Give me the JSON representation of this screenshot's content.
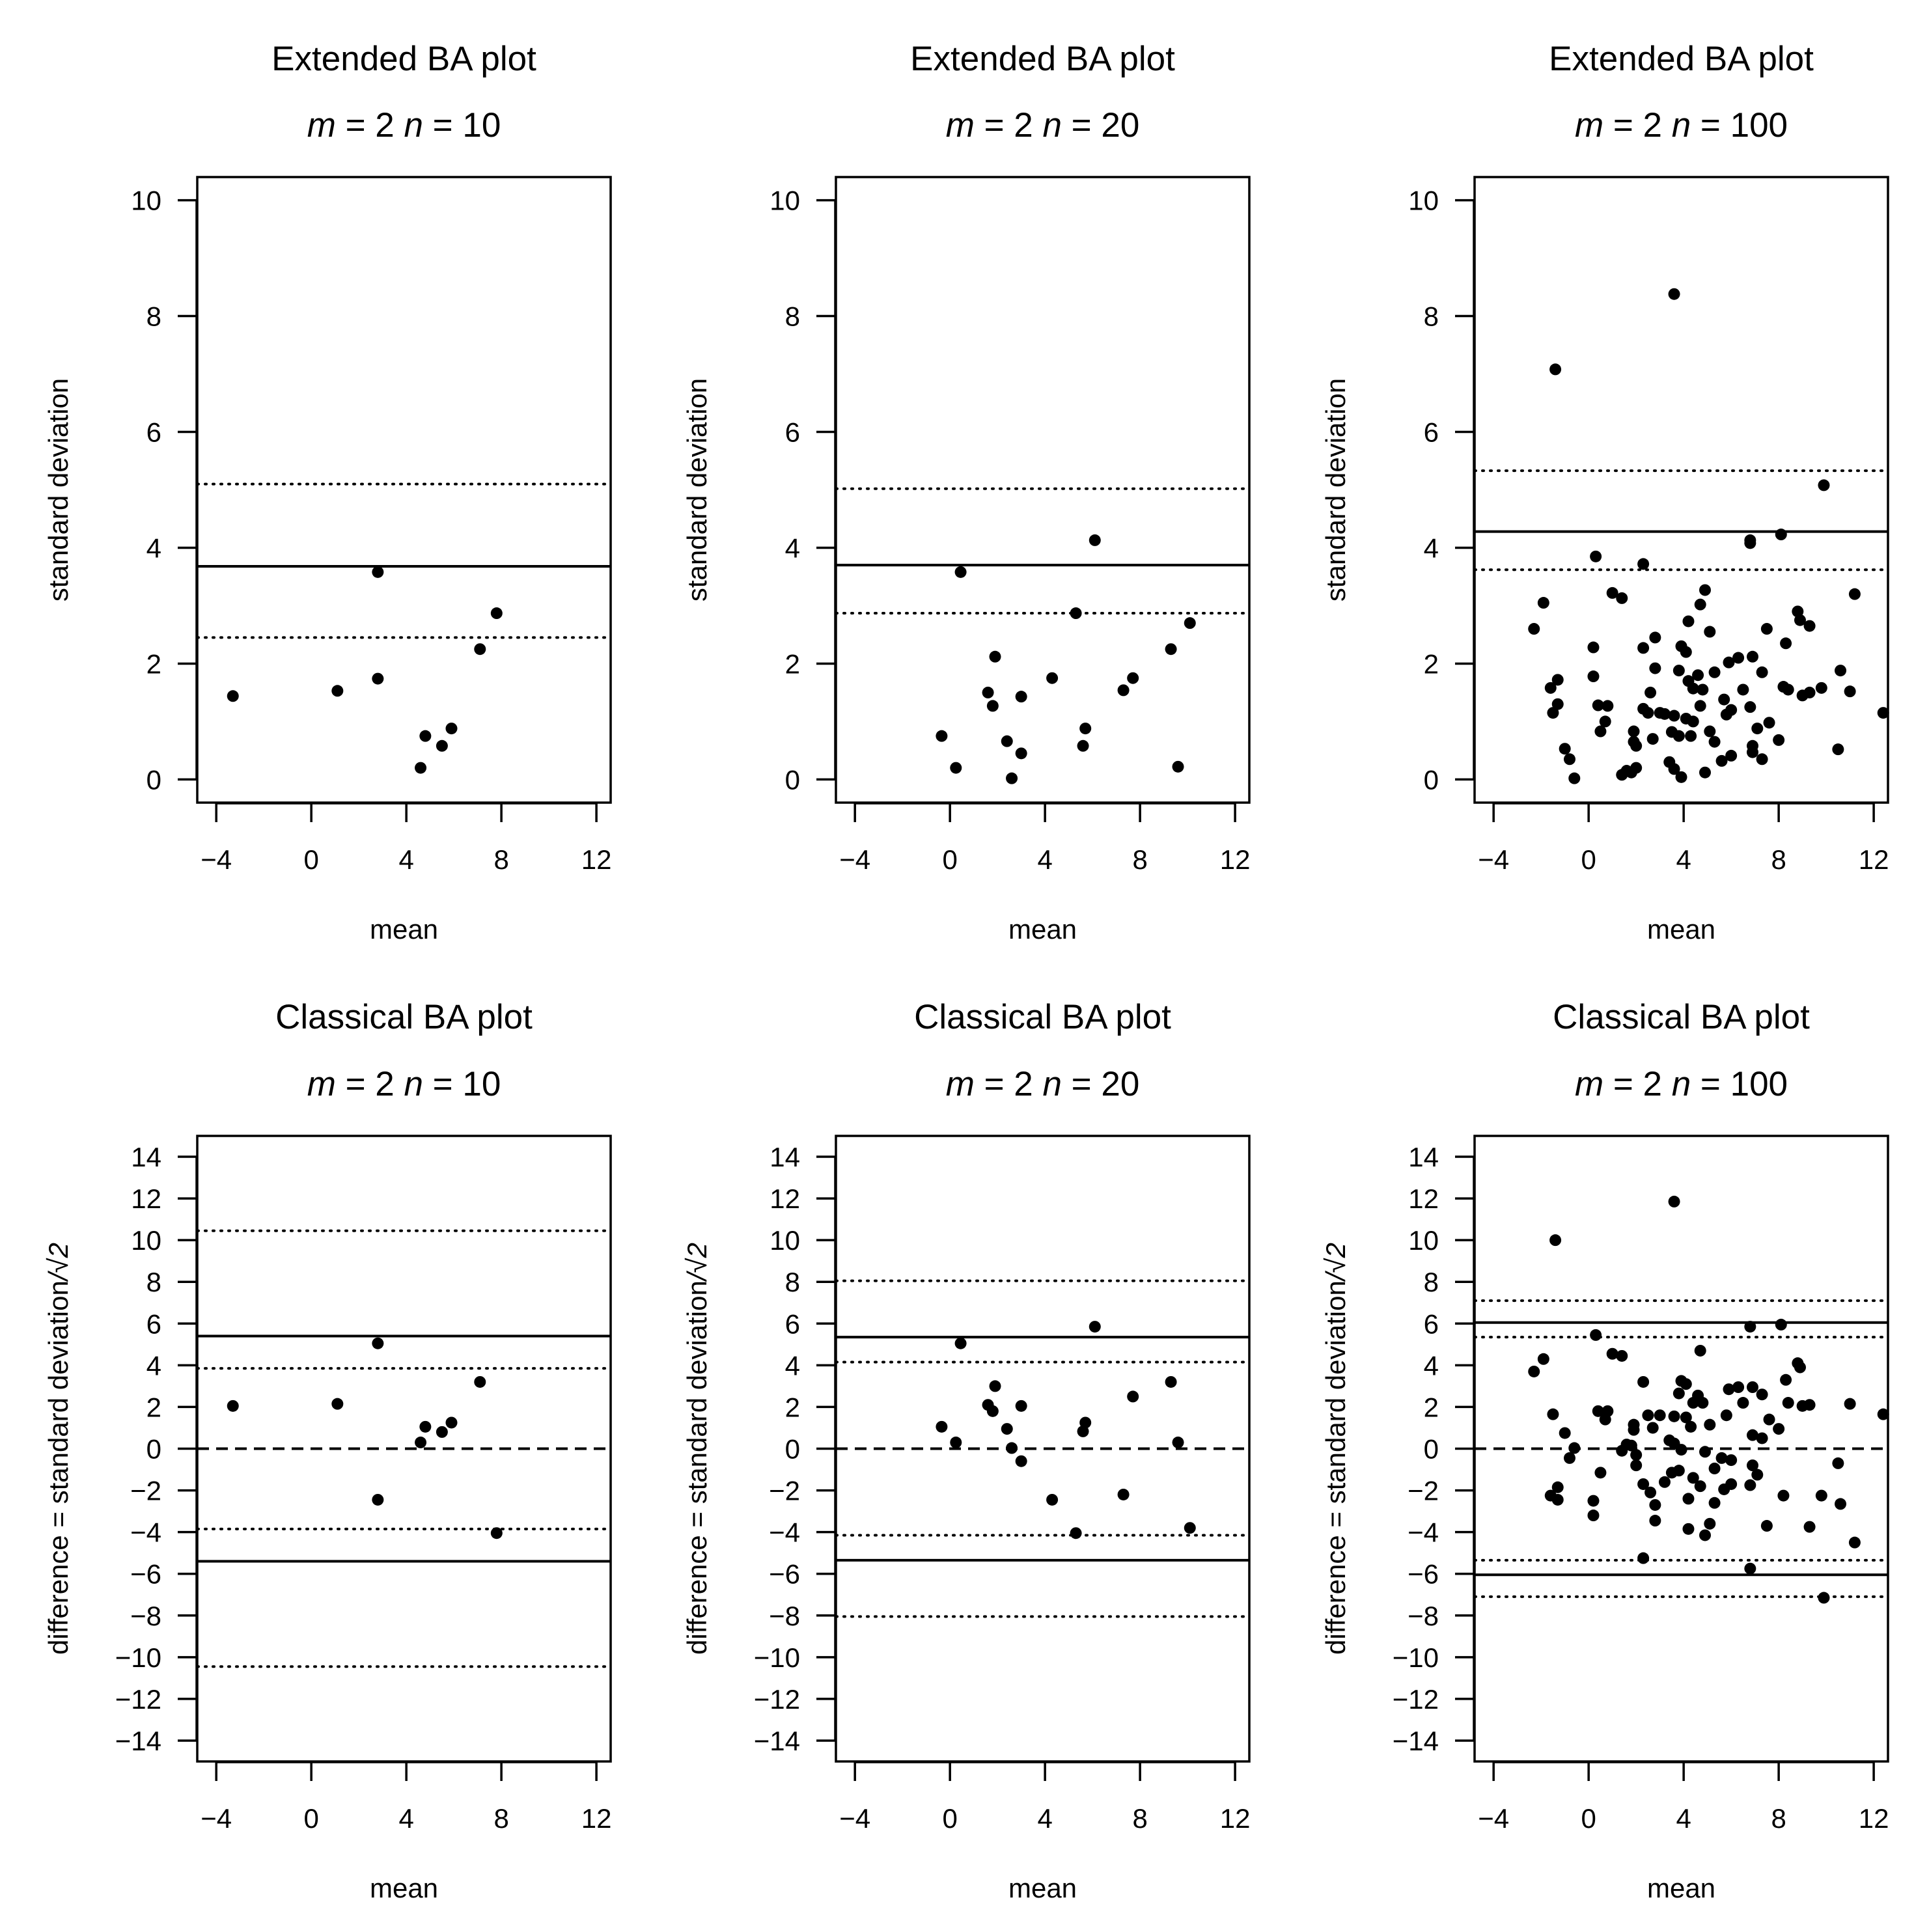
{
  "chart_data": [
    {
      "type": "scatter",
      "title": "Extended BA plot",
      "subtitle": {
        "m": "m",
        "m_value": " = 2 ",
        "n": "n",
        "n_value": " = 10"
      },
      "xlabel": "mean",
      "ylabel": "standard deviation",
      "xlim": [
        -4.8,
        12.6
      ],
      "ylim": [
        -0.4,
        10.4
      ],
      "xticks": [
        "-4",
        "0",
        "4",
        "8",
        "12"
      ],
      "yticks": [
        "0",
        "2",
        "4",
        "6",
        "8",
        "10"
      ],
      "hlines": [
        {
          "style": "solid",
          "y": 3.68
        },
        {
          "style": "dotted",
          "y": 5.1
        },
        {
          "style": "dotted",
          "y": 2.45
        }
      ],
      "points": [
        [
          -3.3,
          1.44
        ],
        [
          1.1,
          1.53
        ],
        [
          2.8,
          3.58
        ],
        [
          2.8,
          1.74
        ],
        [
          4.6,
          0.2
        ],
        [
          4.8,
          0.75
        ],
        [
          5.5,
          0.58
        ],
        [
          5.9,
          0.88
        ],
        [
          7.1,
          2.25
        ],
        [
          7.8,
          2.87
        ]
      ]
    },
    {
      "type": "scatter",
      "title": "Extended BA plot",
      "subtitle": {
        "m": "m",
        "m_value": " = 2 ",
        "n": "n",
        "n_value": " = 20"
      },
      "xlabel": "mean",
      "ylabel": "standard deviation",
      "xlim": [
        -4.8,
        12.6
      ],
      "ylim": [
        -0.4,
        10.4
      ],
      "xticks": [
        "-4",
        "0",
        "4",
        "8",
        "12"
      ],
      "yticks": [
        "0",
        "2",
        "4",
        "6",
        "8",
        "10"
      ],
      "hlines": [
        {
          "style": "solid",
          "y": 3.7
        },
        {
          "style": "dotted",
          "y": 5.02
        },
        {
          "style": "dotted",
          "y": 2.87
        }
      ],
      "points": [
        [
          -0.35,
          0.75
        ],
        [
          0.25,
          0.2
        ],
        [
          0.45,
          3.58
        ],
        [
          1.6,
          1.5
        ],
        [
          1.8,
          1.27
        ],
        [
          1.9,
          2.12
        ],
        [
          2.4,
          0.66
        ],
        [
          2.6,
          0.02
        ],
        [
          3.0,
          1.43
        ],
        [
          3.0,
          0.45
        ],
        [
          4.3,
          1.75
        ],
        [
          5.3,
          2.87
        ],
        [
          5.6,
          0.58
        ],
        [
          5.7,
          0.88
        ],
        [
          6.1,
          4.13
        ],
        [
          7.3,
          1.54
        ],
        [
          7.7,
          1.75
        ],
        [
          9.3,
          2.25
        ],
        [
          9.6,
          0.22
        ],
        [
          10.1,
          2.7
        ]
      ]
    },
    {
      "type": "scatter",
      "title": "Extended BA plot",
      "subtitle": {
        "m": "m",
        "m_value": " = 2 ",
        "n": "n",
        "n_value": " = 100"
      },
      "xlabel": "mean",
      "ylabel": "standard deviation",
      "xlim": [
        -4.8,
        12.6
      ],
      "ylim": [
        -0.4,
        10.4
      ],
      "xticks": [
        "-4",
        "0",
        "4",
        "8",
        "12"
      ],
      "yticks": [
        "0",
        "2",
        "4",
        "6",
        "8",
        "10"
      ],
      "hlines": [
        {
          "style": "solid",
          "y": 4.28
        },
        {
          "style": "dotted",
          "y": 5.33
        },
        {
          "style": "dotted",
          "y": 3.62
        }
      ],
      "points": [
        [
          -2.3,
          2.6
        ],
        [
          -1.9,
          3.05
        ],
        [
          -1.6,
          1.58
        ],
        [
          -1.5,
          1.15
        ],
        [
          -1.3,
          1.72
        ],
        [
          -1.3,
          1.3
        ],
        [
          -1.4,
          7.08
        ],
        [
          -1.0,
          0.53
        ],
        [
          -0.8,
          0.35
        ],
        [
          -0.6,
          0.02
        ],
        [
          0.2,
          2.28
        ],
        [
          0.2,
          1.78
        ],
        [
          0.3,
          3.85
        ],
        [
          0.4,
          1.28
        ],
        [
          0.5,
          0.83
        ],
        [
          0.8,
          1.27
        ],
        [
          0.7,
          1.0
        ],
        [
          1.0,
          3.22
        ],
        [
          1.4,
          3.13
        ],
        [
          1.4,
          0.08
        ],
        [
          1.6,
          0.15
        ],
        [
          1.8,
          0.12
        ],
        [
          2.0,
          0.2
        ],
        [
          2.0,
          0.58
        ],
        [
          1.9,
          0.83
        ],
        [
          1.9,
          0.65
        ],
        [
          2.3,
          3.72
        ],
        [
          2.3,
          2.27
        ],
        [
          2.3,
          1.22
        ],
        [
          2.5,
          1.15
        ],
        [
          2.6,
          1.5
        ],
        [
          2.8,
          1.92
        ],
        [
          2.8,
          2.45
        ],
        [
          2.7,
          0.7
        ],
        [
          3.0,
          1.15
        ],
        [
          3.2,
          1.13
        ],
        [
          3.4,
          0.3
        ],
        [
          3.5,
          0.82
        ],
        [
          3.6,
          0.18
        ],
        [
          3.6,
          1.1
        ],
        [
          3.6,
          8.38
        ],
        [
          3.8,
          1.88
        ],
        [
          3.8,
          0.75
        ],
        [
          3.9,
          2.3
        ],
        [
          3.9,
          0.04
        ],
        [
          4.1,
          2.2
        ],
        [
          4.1,
          1.05
        ],
        [
          4.2,
          1.7
        ],
        [
          4.2,
          2.73
        ],
        [
          4.3,
          0.75
        ],
        [
          4.4,
          1.0
        ],
        [
          4.4,
          1.57
        ],
        [
          4.6,
          1.8
        ],
        [
          4.7,
          3.02
        ],
        [
          4.7,
          1.27
        ],
        [
          4.9,
          3.27
        ],
        [
          4.8,
          1.55
        ],
        [
          4.9,
          0.12
        ],
        [
          5.1,
          2.55
        ],
        [
          5.1,
          0.83
        ],
        [
          5.3,
          0.65
        ],
        [
          5.3,
          1.85
        ],
        [
          5.6,
          0.32
        ],
        [
          5.7,
          1.38
        ],
        [
          5.8,
          1.12
        ],
        [
          5.9,
          2.02
        ],
        [
          6.0,
          0.41
        ],
        [
          6.0,
          1.2
        ],
        [
          6.3,
          2.1
        ],
        [
          6.5,
          1.55
        ],
        [
          6.8,
          4.08
        ],
        [
          6.8,
          4.13
        ],
        [
          6.9,
          2.12
        ],
        [
          6.8,
          1.25
        ],
        [
          6.9,
          0.47
        ],
        [
          6.9,
          0.58
        ],
        [
          7.1,
          0.88
        ],
        [
          7.3,
          0.35
        ],
        [
          7.3,
          1.85
        ],
        [
          7.5,
          2.6
        ],
        [
          7.6,
          0.98
        ],
        [
          8.0,
          0.68
        ],
        [
          8.1,
          4.23
        ],
        [
          8.2,
          1.6
        ],
        [
          8.3,
          2.35
        ],
        [
          8.4,
          1.55
        ],
        [
          8.8,
          2.9
        ],
        [
          8.9,
          2.75
        ],
        [
          9.0,
          1.45
        ],
        [
          9.3,
          2.65
        ],
        [
          9.3,
          1.5
        ],
        [
          9.8,
          1.58
        ],
        [
          9.9,
          5.08
        ],
        [
          10.5,
          0.52
        ],
        [
          10.6,
          1.88
        ],
        [
          11.0,
          1.52
        ],
        [
          11.2,
          3.2
        ],
        [
          12.4,
          1.15
        ]
      ]
    },
    {
      "type": "scatter",
      "title": "Classical BA plot",
      "subtitle": {
        "m": "m",
        "m_value": " = 2 ",
        "n": "n",
        "n_value": " = 10"
      },
      "xlabel": "mean",
      "ylabel_main": "difference = standard deviation",
      "ylabel_root": "/√2",
      "xlim": [
        -4.8,
        12.6
      ],
      "ylim": [
        -15.0,
        15.0
      ],
      "xticks": [
        "-4",
        "0",
        "4",
        "8",
        "12"
      ],
      "yticks": [
        "-14",
        "-12",
        "-10",
        "-8",
        "-6",
        "-4",
        "-2",
        "0",
        "2",
        "4",
        "6",
        "8",
        "10",
        "12",
        "14"
      ],
      "hlines": [
        {
          "style": "solid",
          "y": 5.4
        },
        {
          "style": "solid",
          "y": -5.4
        },
        {
          "style": "dotted",
          "y": 10.45
        },
        {
          "style": "dotted",
          "y": 3.85
        },
        {
          "style": "dotted",
          "y": -3.85
        },
        {
          "style": "dotted",
          "y": -10.45
        },
        {
          "style": "dashed",
          "y": 0
        }
      ],
      "points": [
        [
          -3.3,
          2.05
        ],
        [
          1.1,
          2.15
        ],
        [
          2.8,
          5.05
        ],
        [
          2.8,
          -2.45
        ],
        [
          4.6,
          0.3
        ],
        [
          4.8,
          1.05
        ],
        [
          5.5,
          0.8
        ],
        [
          5.9,
          1.25
        ],
        [
          7.1,
          3.2
        ],
        [
          7.8,
          -4.05
        ]
      ]
    },
    {
      "type": "scatter",
      "title": "Classical BA plot",
      "subtitle": {
        "m": "m",
        "m_value": " = 2 ",
        "n": "n",
        "n_value": " = 20"
      },
      "xlabel": "mean",
      "ylabel_main": "difference = standard deviation",
      "ylabel_root": "/√2",
      "xlim": [
        -4.8,
        12.6
      ],
      "ylim": [
        -15.0,
        15.0
      ],
      "xticks": [
        "-4",
        "0",
        "4",
        "8",
        "12"
      ],
      "yticks": [
        "-14",
        "-12",
        "-10",
        "-8",
        "-6",
        "-4",
        "-2",
        "0",
        "2",
        "4",
        "6",
        "8",
        "10",
        "12",
        "14"
      ],
      "hlines": [
        {
          "style": "solid",
          "y": 5.35
        },
        {
          "style": "solid",
          "y": -5.35
        },
        {
          "style": "dotted",
          "y": 8.05
        },
        {
          "style": "dotted",
          "y": 4.15
        },
        {
          "style": "dotted",
          "y": -4.15
        },
        {
          "style": "dotted",
          "y": -8.05
        },
        {
          "style": "dashed",
          "y": 0
        }
      ],
      "points": [
        [
          -0.35,
          1.05
        ],
        [
          0.25,
          0.3
        ],
        [
          0.45,
          5.05
        ],
        [
          1.6,
          2.1
        ],
        [
          1.8,
          1.8
        ],
        [
          1.9,
          3.0
        ],
        [
          2.4,
          0.95
        ],
        [
          2.6,
          0.03
        ],
        [
          3.0,
          2.05
        ],
        [
          3.0,
          -0.6
        ],
        [
          4.3,
          -2.45
        ],
        [
          5.3,
          -4.05
        ],
        [
          5.6,
          0.83
        ],
        [
          5.7,
          1.25
        ],
        [
          6.1,
          5.85
        ],
        [
          7.3,
          -2.2
        ],
        [
          7.7,
          2.5
        ],
        [
          9.3,
          3.2
        ],
        [
          9.6,
          0.3
        ],
        [
          10.1,
          -3.8
        ]
      ]
    },
    {
      "type": "scatter",
      "title": "Classical BA plot",
      "subtitle": {
        "m": "m",
        "m_value": " = 2 ",
        "n": "n",
        "n_value": " = 100"
      },
      "xlabel": "mean",
      "ylabel_main": "difference = standard deviation",
      "ylabel_root": "/√2",
      "xlim": [
        -4.8,
        12.6
      ],
      "ylim": [
        -15.0,
        15.0
      ],
      "xticks": [
        "-4",
        "0",
        "4",
        "8",
        "12"
      ],
      "yticks": [
        "-14",
        "-12",
        "-10",
        "-8",
        "-6",
        "-4",
        "-2",
        "0",
        "2",
        "4",
        "6",
        "8",
        "10",
        "12",
        "14"
      ],
      "hlines": [
        {
          "style": "solid",
          "y": 6.05
        },
        {
          "style": "solid",
          "y": -6.05
        },
        {
          "style": "dotted",
          "y": 7.1
        },
        {
          "style": "dotted",
          "y": 5.35
        },
        {
          "style": "dotted",
          "y": -5.35
        },
        {
          "style": "dotted",
          "y": -7.1
        },
        {
          "style": "dashed",
          "y": 0
        }
      ],
      "points": [
        [
          -2.3,
          3.7
        ],
        [
          -1.9,
          4.3
        ],
        [
          -1.6,
          -2.25
        ],
        [
          -1.5,
          1.65
        ],
        [
          -1.3,
          -2.45
        ],
        [
          -1.3,
          -1.85
        ],
        [
          -1.4,
          10.0
        ],
        [
          -1.0,
          0.75
        ],
        [
          -0.8,
          -0.45
        ],
        [
          -0.6,
          0.03
        ],
        [
          0.2,
          -3.2
        ],
        [
          0.2,
          -2.5
        ],
        [
          0.3,
          5.45
        ],
        [
          0.4,
          1.8
        ],
        [
          0.5,
          -1.15
        ],
        [
          0.8,
          1.8
        ],
        [
          0.7,
          1.4
        ],
        [
          1.0,
          4.55
        ],
        [
          1.4,
          4.45
        ],
        [
          1.4,
          -0.1
        ],
        [
          1.6,
          0.2
        ],
        [
          1.8,
          0.15
        ],
        [
          2.0,
          -0.3
        ],
        [
          2.0,
          -0.8
        ],
        [
          1.9,
          1.15
        ],
        [
          1.9,
          0.9
        ],
        [
          2.3,
          -5.25
        ],
        [
          2.3,
          3.2
        ],
        [
          2.3,
          -1.7
        ],
        [
          2.5,
          1.6
        ],
        [
          2.6,
          -2.1
        ],
        [
          2.8,
          -2.7
        ],
        [
          2.8,
          -3.45
        ],
        [
          2.7,
          1.0
        ],
        [
          3.0,
          1.6
        ],
        [
          3.2,
          -1.6
        ],
        [
          3.4,
          0.4
        ],
        [
          3.5,
          -1.15
        ],
        [
          3.6,
          0.25
        ],
        [
          3.6,
          1.55
        ],
        [
          3.6,
          11.85
        ],
        [
          3.8,
          2.65
        ],
        [
          3.8,
          -1.05
        ],
        [
          3.9,
          3.25
        ],
        [
          3.9,
          -0.05
        ],
        [
          4.1,
          3.1
        ],
        [
          4.1,
          1.5
        ],
        [
          4.2,
          -2.4
        ],
        [
          4.2,
          -3.85
        ],
        [
          4.3,
          1.05
        ],
        [
          4.4,
          -1.4
        ],
        [
          4.4,
          2.2
        ],
        [
          4.6,
          2.55
        ],
        [
          4.7,
          4.7
        ],
        [
          4.7,
          -1.8
        ],
        [
          4.9,
          -4.15
        ],
        [
          4.8,
          2.2
        ],
        [
          4.9,
          -0.15
        ],
        [
          5.1,
          -3.6
        ],
        [
          5.1,
          1.15
        ],
        [
          5.3,
          -0.95
        ],
        [
          5.3,
          -2.6
        ],
        [
          5.6,
          -0.45
        ],
        [
          5.7,
          -1.95
        ],
        [
          5.8,
          1.6
        ],
        [
          5.9,
          2.85
        ],
        [
          6.0,
          -0.55
        ],
        [
          6.0,
          -1.7
        ],
        [
          6.3,
          2.95
        ],
        [
          6.5,
          2.2
        ],
        [
          6.8,
          -5.75
        ],
        [
          6.8,
          5.85
        ],
        [
          6.9,
          2.95
        ],
        [
          6.8,
          -1.75
        ],
        [
          6.9,
          0.65
        ],
        [
          6.9,
          -0.8
        ],
        [
          7.1,
          -1.25
        ],
        [
          7.3,
          0.5
        ],
        [
          7.3,
          2.6
        ],
        [
          7.5,
          -3.7
        ],
        [
          7.6,
          1.4
        ],
        [
          8.0,
          0.95
        ],
        [
          8.1,
          5.95
        ],
        [
          8.2,
          -2.25
        ],
        [
          8.3,
          3.3
        ],
        [
          8.4,
          2.2
        ],
        [
          8.8,
          4.1
        ],
        [
          8.9,
          3.9
        ],
        [
          9.0,
          2.05
        ],
        [
          9.3,
          -3.75
        ],
        [
          9.3,
          2.1
        ],
        [
          9.8,
          -2.25
        ],
        [
          9.9,
          -7.15
        ],
        [
          10.5,
          -0.7
        ],
        [
          10.6,
          -2.65
        ],
        [
          11.0,
          2.15
        ],
        [
          11.2,
          -4.5
        ],
        [
          12.4,
          1.65
        ]
      ]
    }
  ]
}
